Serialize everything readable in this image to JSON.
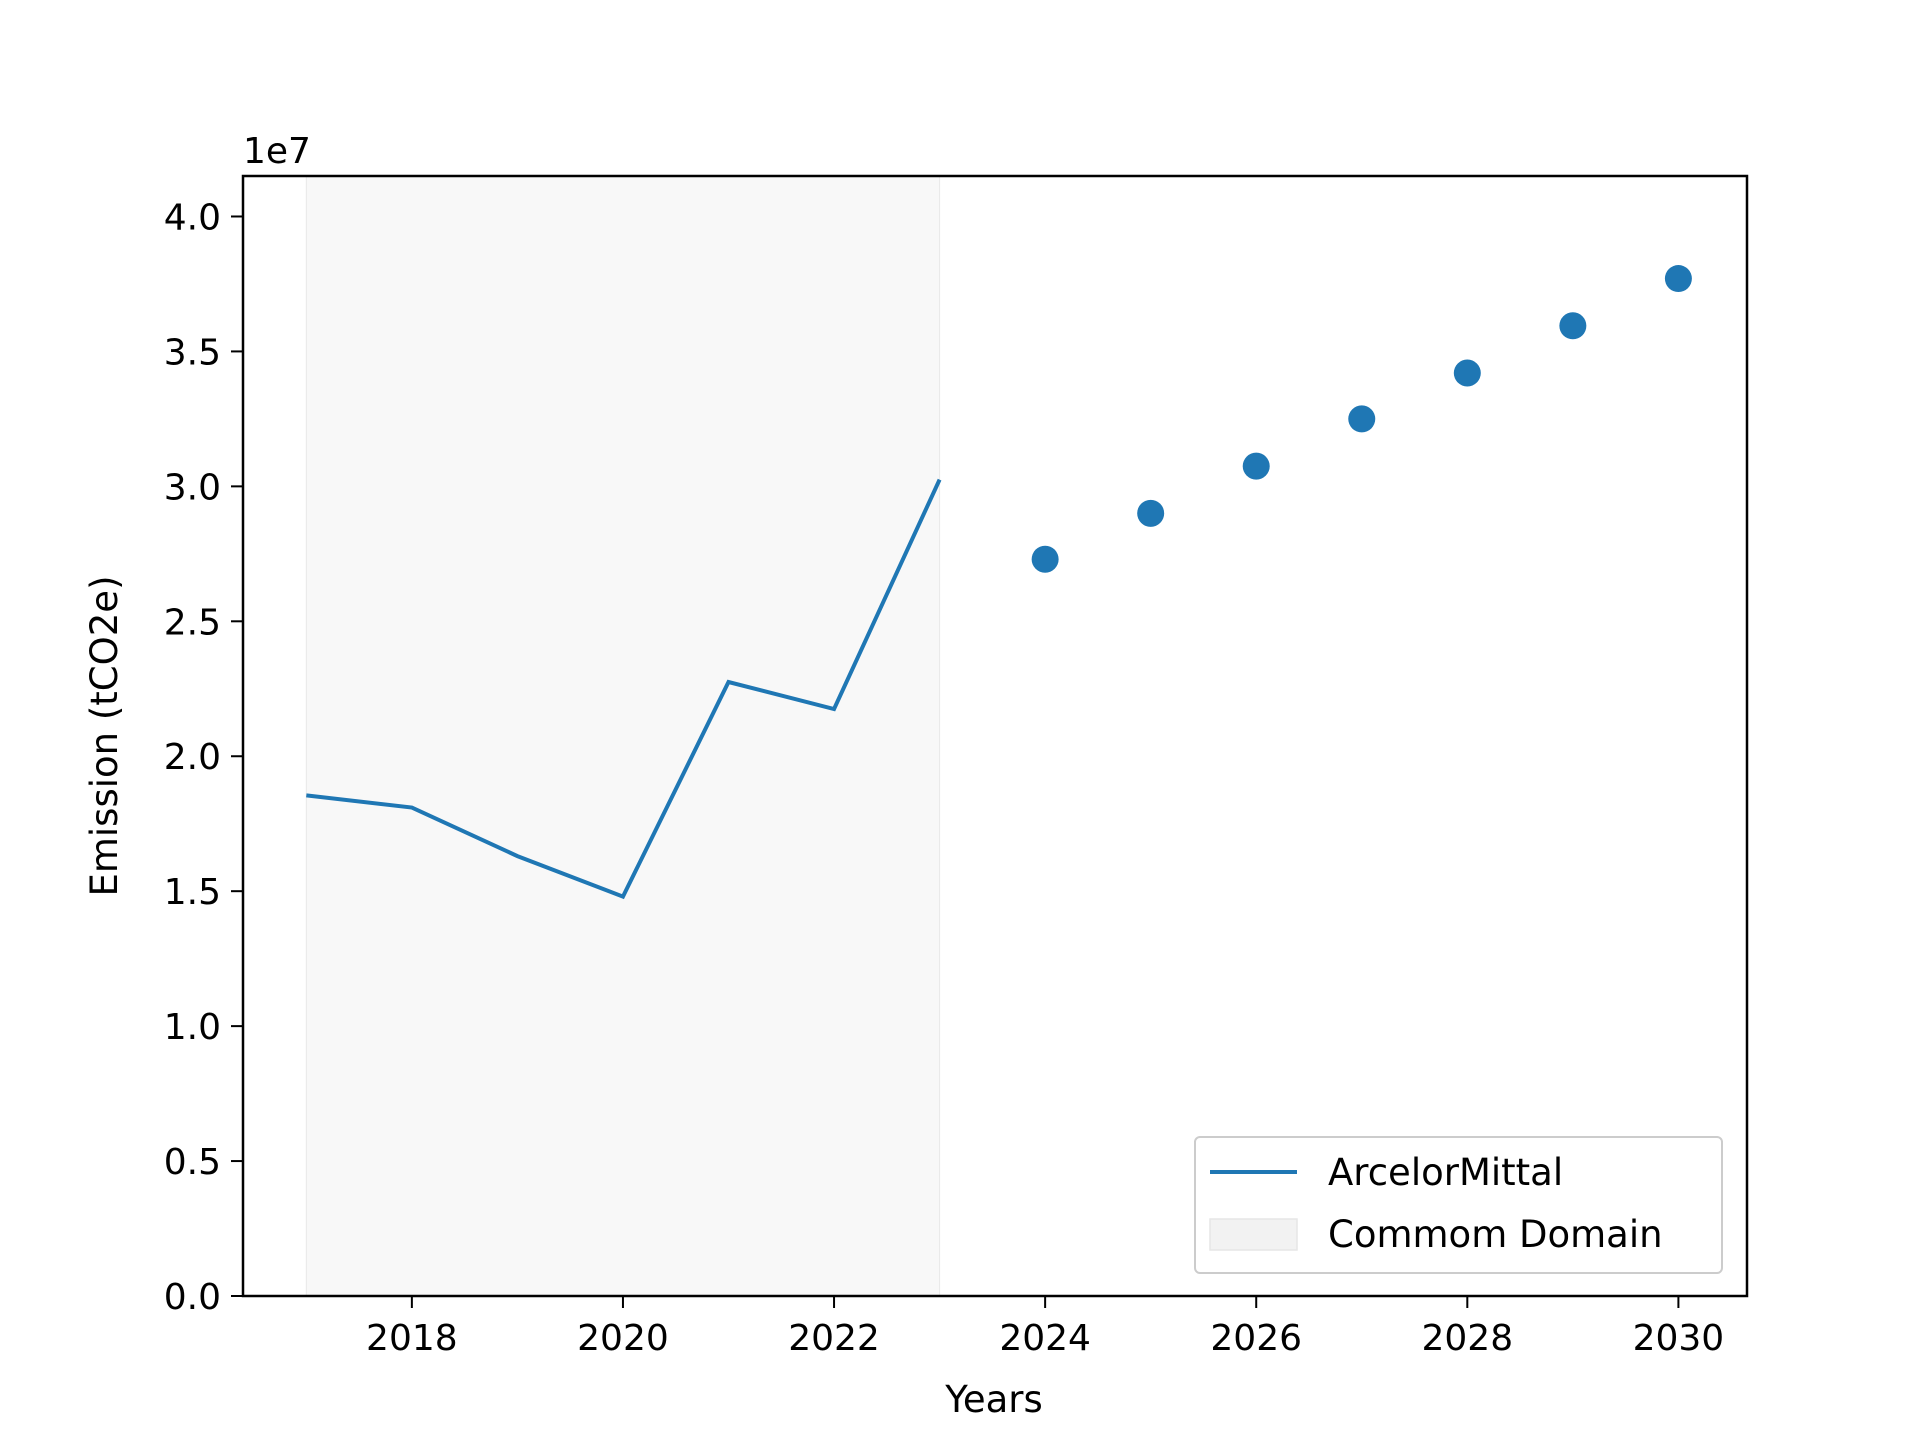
{
  "chart_data": {
    "type": "line",
    "title": "",
    "xlabel": "Years",
    "ylabel": "Emission (tCO2e)",
    "y_offset_label": "1e7",
    "xlim": [
      2016.4,
      2030.65
    ],
    "ylim": [
      0,
      4.15
    ],
    "x_ticks": [
      2018,
      2020,
      2022,
      2024,
      2026,
      2028,
      2030
    ],
    "y_ticks": [
      0.0,
      0.5,
      1.0,
      1.5,
      2.0,
      2.5,
      3.0,
      3.5,
      4.0
    ],
    "y_tick_labels": [
      "0.0",
      "0.5",
      "1.0",
      "1.5",
      "2.0",
      "2.5",
      "3.0",
      "3.5",
      "4.0"
    ],
    "grid": false,
    "legend_position": "lower-right",
    "shaded_region": {
      "name": "Commom Domain",
      "x_start": 2017,
      "x_end": 2023,
      "color": "#f2f2f2"
    },
    "series": [
      {
        "name": "ArcelorMittal",
        "kind": "line",
        "color": "#1f77b4",
        "x": [
          2017,
          2018,
          2019,
          2020,
          2021,
          2022,
          2023
        ],
        "y": [
          1.855,
          1.81,
          1.63,
          1.48,
          2.275,
          2.175,
          3.025
        ]
      },
      {
        "kind": "scatter",
        "color": "#1f77b4",
        "x": [
          2024,
          2025,
          2026,
          2027,
          2028,
          2029,
          2030
        ],
        "y": [
          2.73,
          2.9,
          3.075,
          3.25,
          3.42,
          3.595,
          3.77
        ]
      }
    ],
    "legend": [
      {
        "label": "ArcelorMittal",
        "kind": "line",
        "color": "#1f77b4"
      },
      {
        "label": "Commom Domain",
        "kind": "patch",
        "color": "#f2f2f2"
      }
    ]
  }
}
